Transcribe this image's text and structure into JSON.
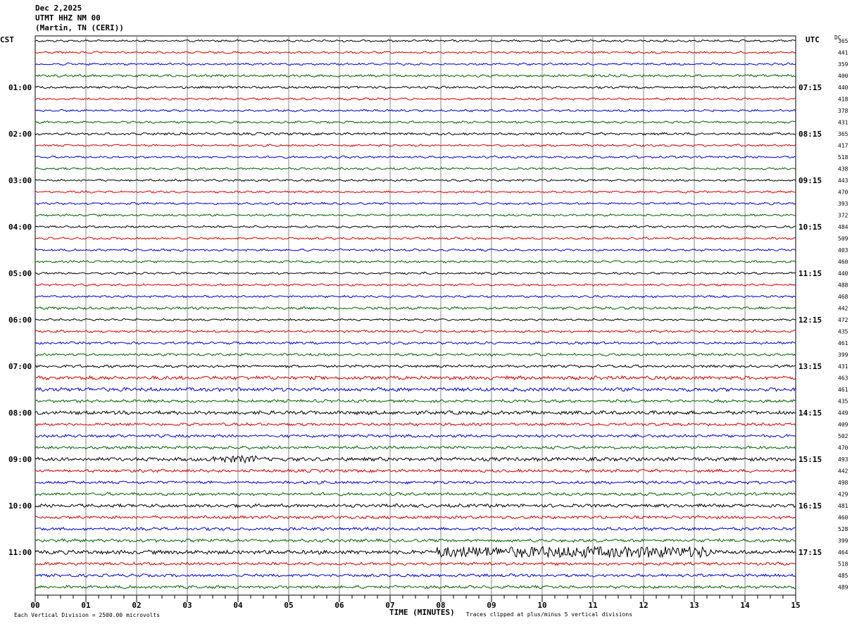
{
  "header": {
    "date": "Dec 2,2025",
    "station": "UTMT HHZ NM 00",
    "location": "(Martin, TN (CERI))"
  },
  "axes": {
    "left_label": "CST",
    "right_label": "UTC",
    "dc_label": "DC",
    "x_title": "TIME (MINUTES)",
    "scale_note": "Each Vertical Division = 2500.00 microvolts",
    "clip_note": "Traces clipped at plus/minus 5 vertical divisions"
  },
  "colors": {
    "trace_cycle": [
      "#000000",
      "#e00000",
      "#0000dd",
      "#006400"
    ],
    "grid": "#888888"
  },
  "chart_data": {
    "type": "line",
    "title": "",
    "x_ticks": [
      "00",
      "01",
      "02",
      "03",
      "04",
      "05",
      "06",
      "07",
      "08",
      "09",
      "10",
      "11",
      "12",
      "13",
      "14",
      "15"
    ],
    "xlim": [
      0,
      15
    ],
    "trace_interval_minutes": 15,
    "traces_count": 48,
    "left_hour_labels": [
      "01:00",
      "02:00",
      "03:00",
      "04:00",
      "05:00",
      "06:00",
      "07:00",
      "08:00",
      "09:00",
      "10:00",
      "11:00"
    ],
    "right_hour_labels": [
      "07:15",
      "08:15",
      "09:15",
      "10:15",
      "11:15",
      "12:15",
      "13:15",
      "14:15",
      "15:15",
      "16:15",
      "17:15"
    ],
    "dc_offsets": [
      365,
      441,
      359,
      400,
      440,
      418,
      378,
      431,
      365,
      417,
      518,
      438,
      443,
      470,
      393,
      372,
      484,
      509,
      403,
      460,
      440,
      488,
      468,
      442,
      472,
      435,
      461,
      399,
      431,
      463,
      461,
      435,
      449,
      409,
      502,
      470,
      493,
      442,
      498,
      429,
      481,
      460,
      528,
      399,
      464,
      518,
      485,
      489
    ],
    "noise_levels": [
      1,
      1,
      1,
      1.2,
      1.2,
      1,
      1,
      1,
      1.2,
      1,
      1,
      1,
      1,
      1,
      1,
      1,
      1,
      1,
      1,
      1,
      1,
      1,
      1,
      1.3,
      1,
      1.2,
      1.2,
      1.2,
      1.4,
      2,
      2,
      1.5,
      2,
      1.4,
      1.5,
      1.5,
      2,
      1.6,
      1.5,
      1.5,
      1.8,
      1.6,
      1.6,
      1.6,
      2.2,
      1.5,
      1.5,
      1.5
    ]
  }
}
